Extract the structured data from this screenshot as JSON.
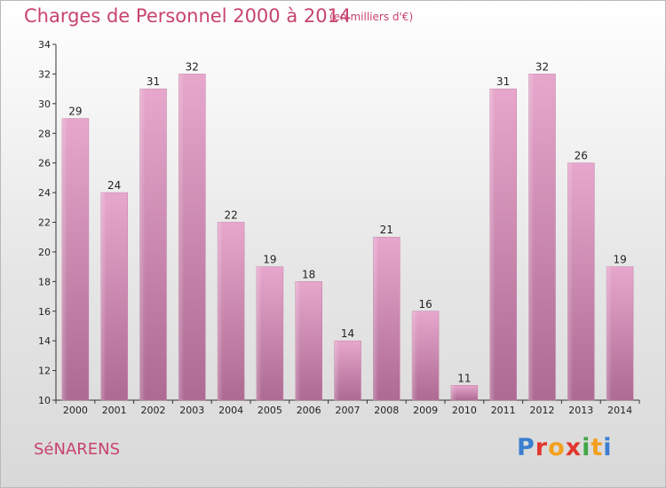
{
  "header": {
    "title": "Charges de Personnel 2000 à 2014",
    "subtitle": "(en milliers d'€)"
  },
  "footer": {
    "commune": "SéNARENS",
    "logo_letters": [
      "P",
      "r",
      "o",
      "x",
      "i",
      "t",
      "i"
    ],
    "logo_colors": [
      "#3a7fd0",
      "#e2372f",
      "#f3a01d",
      "#e2372f",
      "#43a847",
      "#f3a01d",
      "#3a7fd0"
    ]
  },
  "chart_data": {
    "type": "bar",
    "categories": [
      "2000",
      "2001",
      "2002",
      "2003",
      "2004",
      "2005",
      "2006",
      "2007",
      "2008",
      "2009",
      "2010",
      "2011",
      "2012",
      "2013",
      "2014"
    ],
    "values": [
      29,
      24,
      31,
      32,
      22,
      19,
      18,
      14,
      21,
      16,
      11,
      31,
      32,
      26,
      19
    ],
    "ylim": [
      10,
      34
    ],
    "yticks": [
      10,
      12,
      14,
      16,
      18,
      20,
      22,
      24,
      26,
      28,
      30,
      32,
      34
    ],
    "bar_color": "#d98fb6",
    "grid": false
  }
}
